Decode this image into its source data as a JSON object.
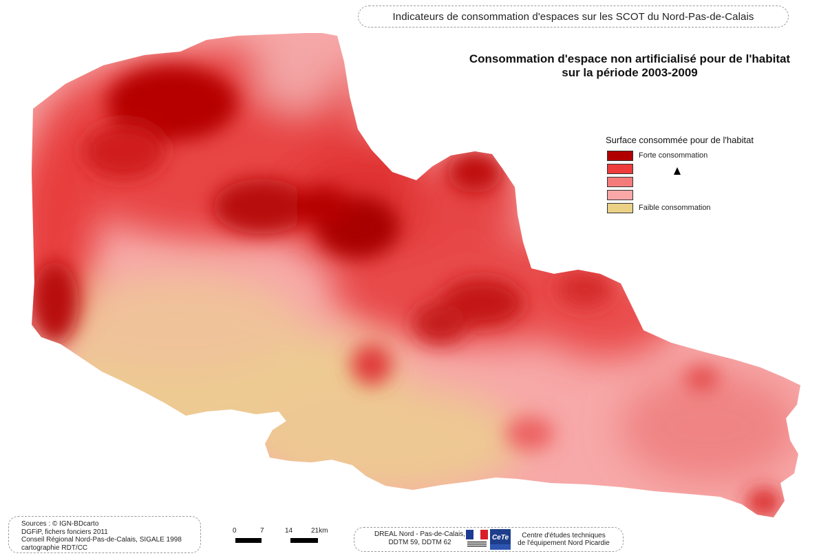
{
  "header": {
    "banner_text": "Indicateurs de consommation d'espaces sur les SCOT du Nord-Pas-de-Calais"
  },
  "title": {
    "line1": "Consommation d'espace non artificialisé pour de l'habitat",
    "line2": "sur la période 2003-2009"
  },
  "legend": {
    "title": "Surface consommée pour de l'habitat",
    "items": [
      {
        "label": "Forte consommation",
        "color": "#b00000"
      },
      {
        "label": "",
        "color": "#ee3c3c"
      },
      {
        "label": "",
        "color": "#f57a7a"
      },
      {
        "label": "",
        "color": "#f9a7a7"
      },
      {
        "label": "Faible consommation",
        "color": "#ead185"
      }
    ]
  },
  "sources": {
    "line1": "Sources : © IGN-BDcarto",
    "line2": "DGFiP, fichers fonciers 2011",
    "line3": "Conseil Régional Nord-Pas-de-Calais, SIGALE 1998",
    "line4": "cartographie RDT/CC"
  },
  "scale": {
    "labels": [
      "0",
      "7",
      "14",
      "21km"
    ]
  },
  "credits": {
    "dreal_line1": "DREAL Nord - Pas-de-Calais,",
    "dreal_line2": "DDTM 59, DDTM 62",
    "cete_logo_text": "CeTe",
    "cete_line1": "Centre d'études techniques",
    "cete_line2": "de l'équipement Nord Picardie"
  },
  "icons": {
    "north_arrow": "north-arrow-icon",
    "flag_logo": "republique-francaise-logo",
    "cete_logo": "cete-logo"
  }
}
